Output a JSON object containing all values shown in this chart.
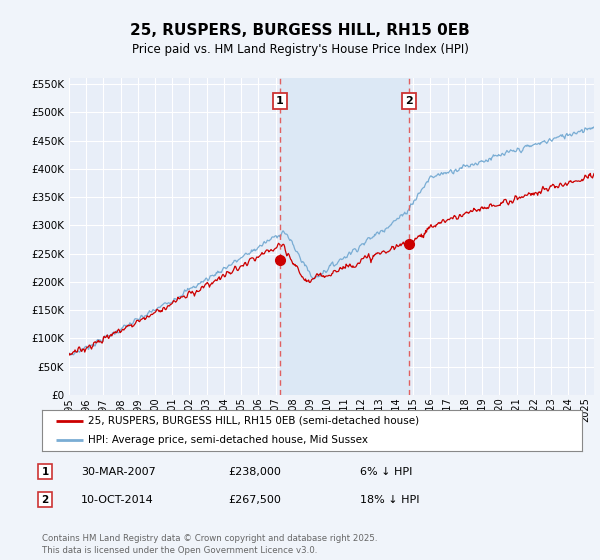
{
  "title": "25, RUSPERS, BURGESS HILL, RH15 0EB",
  "subtitle": "Price paid vs. HM Land Registry's House Price Index (HPI)",
  "ytick_values": [
    0,
    50000,
    100000,
    150000,
    200000,
    250000,
    300000,
    350000,
    400000,
    450000,
    500000,
    550000
  ],
  "ylim": [
    0,
    560000
  ],
  "xlim_start": 1995.0,
  "xlim_end": 2025.5,
  "bg_color": "#f0f4fa",
  "plot_bg": "#e8eef8",
  "grid_color": "#ffffff",
  "red_line_color": "#cc0000",
  "blue_line_color": "#7aadd4",
  "vspan_color": "#dce8f5",
  "marker1_date": 2007.24,
  "marker1_value": 238000,
  "marker2_date": 2014.78,
  "marker2_value": 267500,
  "vline_color": "#e06060",
  "legend_label_red": "25, RUSPERS, BURGESS HILL, RH15 0EB (semi-detached house)",
  "legend_label_blue": "HPI: Average price, semi-detached house, Mid Sussex",
  "annotation1_date": "30-MAR-2007",
  "annotation1_price": "£238,000",
  "annotation1_pct": "6% ↓ HPI",
  "annotation2_date": "10-OCT-2014",
  "annotation2_price": "£267,500",
  "annotation2_pct": "18% ↓ HPI",
  "footer": "Contains HM Land Registry data © Crown copyright and database right 2025.\nThis data is licensed under the Open Government Licence v3.0.",
  "x_ticks": [
    1995,
    1996,
    1997,
    1998,
    1999,
    2000,
    2001,
    2002,
    2003,
    2004,
    2005,
    2006,
    2007,
    2008,
    2009,
    2010,
    2011,
    2012,
    2013,
    2014,
    2015,
    2016,
    2017,
    2018,
    2019,
    2020,
    2021,
    2022,
    2023,
    2024,
    2025
  ]
}
